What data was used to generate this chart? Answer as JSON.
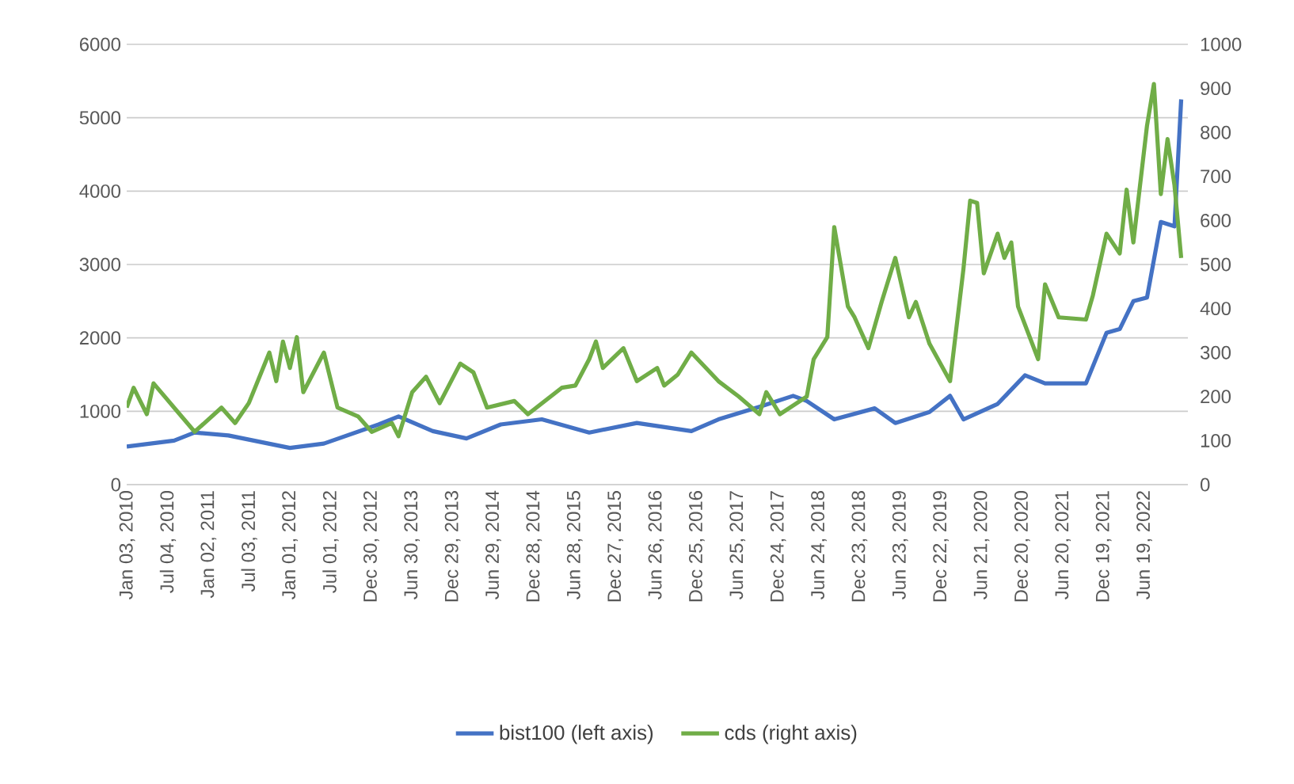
{
  "chart_data": {
    "type": "line",
    "grid": "y",
    "legend": "bottom",
    "xlim": [
      "2010-01-01",
      "2022-12-31"
    ],
    "xticks": [
      {
        "value": "2010-01-03",
        "label": "Jan 03, 2010"
      },
      {
        "value": "2010-07-04",
        "label": "Jul 04, 2010"
      },
      {
        "value": "2011-01-02",
        "label": "Jan 02, 2011"
      },
      {
        "value": "2011-07-03",
        "label": "Jul 03, 2011"
      },
      {
        "value": "2012-01-01",
        "label": "Jan 01, 2012"
      },
      {
        "value": "2012-07-01",
        "label": "Jul 01, 2012"
      },
      {
        "value": "2012-12-30",
        "label": "Dec 30, 2012"
      },
      {
        "value": "2013-06-30",
        "label": "Jun 30, 2013"
      },
      {
        "value": "2013-12-29",
        "label": "Dec 29, 2013"
      },
      {
        "value": "2014-06-29",
        "label": "Jun 29, 2014"
      },
      {
        "value": "2014-12-28",
        "label": "Dec 28, 2014"
      },
      {
        "value": "2015-06-28",
        "label": "Jun 28, 2015"
      },
      {
        "value": "2015-12-27",
        "label": "Dec 27, 2015"
      },
      {
        "value": "2016-06-26",
        "label": "Jun 26, 2016"
      },
      {
        "value": "2016-12-25",
        "label": "Dec 25, 2016"
      },
      {
        "value": "2017-06-25",
        "label": "Jun 25, 2017"
      },
      {
        "value": "2017-12-24",
        "label": "Dec 24, 2017"
      },
      {
        "value": "2018-06-24",
        "label": "Jun 24, 2018"
      },
      {
        "value": "2018-12-23",
        "label": "Dec 23, 2018"
      },
      {
        "value": "2019-06-23",
        "label": "Jun 23, 2019"
      },
      {
        "value": "2019-12-22",
        "label": "Dec 22, 2019"
      },
      {
        "value": "2020-06-21",
        "label": "Jun 21, 2020"
      },
      {
        "value": "2020-12-20",
        "label": "Dec 20, 2020"
      },
      {
        "value": "2021-06-20",
        "label": "Jun 20, 2021"
      },
      {
        "value": "2021-12-19",
        "label": "Dec 19, 2021"
      },
      {
        "value": "2022-06-19",
        "label": "Jun 19, 2022"
      }
    ],
    "ylim": [
      0,
      6000
    ],
    "yticks": [
      0,
      1000,
      2000,
      3000,
      4000,
      5000,
      6000
    ],
    "y2lim": [
      0,
      1000
    ],
    "y2ticks": [
      0,
      100,
      200,
      300,
      400,
      500,
      600,
      700,
      800,
      900,
      1000
    ],
    "series": [
      {
        "name": "bist100 (left axis)",
        "color": "#4472c4",
        "axis": "y",
        "x": [
          "2010-01",
          "2010-08",
          "2010-11",
          "2011-04",
          "2012-01",
          "2012-06",
          "2013-02",
          "2013-05",
          "2013-10",
          "2014-03",
          "2014-08",
          "2015-02",
          "2015-09",
          "2016-04",
          "2016-12",
          "2017-04",
          "2017-10",
          "2018-03",
          "2018-05",
          "2018-09",
          "2019-03",
          "2019-06",
          "2019-11",
          "2020-02",
          "2020-04",
          "2020-09",
          "2021-01",
          "2021-04",
          "2021-10",
          "2022-01",
          "2022-03",
          "2022-05",
          "2022-07",
          "2022-09",
          "2022-11",
          "2022-12"
        ],
        "values": [
          520,
          600,
          710,
          670,
          500,
          560,
          820,
          930,
          730,
          630,
          820,
          890,
          710,
          840,
          730,
          890,
          1060,
          1210,
          1140,
          890,
          1040,
          840,
          990,
          1210,
          890,
          1100,
          1490,
          1380,
          1380,
          2070,
          2120,
          2500,
          2550,
          3580,
          3520,
          5250
        ]
      },
      {
        "name": "cds (right axis)",
        "color": "#70ad47",
        "axis": "y2",
        "x": [
          "2010-01",
          "2010-02",
          "2010-04",
          "2010-05",
          "2010-08",
          "2010-11",
          "2011-03",
          "2011-05",
          "2011-07",
          "2011-10",
          "2011-11",
          "2011-12",
          "2012-01",
          "2012-02",
          "2012-03",
          "2012-06",
          "2012-08",
          "2012-11",
          "2013-01",
          "2013-04",
          "2013-05",
          "2013-07",
          "2013-09",
          "2013-11",
          "2014-02",
          "2014-04",
          "2014-06",
          "2014-10",
          "2014-12",
          "2015-05",
          "2015-07",
          "2015-09",
          "2015-10",
          "2015-11",
          "2016-02",
          "2016-04",
          "2016-07",
          "2016-08",
          "2016-10",
          "2016-12",
          "2017-04",
          "2017-07",
          "2017-10",
          "2017-11",
          "2018-01",
          "2018-05",
          "2018-06",
          "2018-08",
          "2018-09",
          "2018-11",
          "2018-12",
          "2019-02",
          "2019-04",
          "2019-06",
          "2019-08",
          "2019-09",
          "2019-11",
          "2020-02",
          "2020-04",
          "2020-05",
          "2020-06",
          "2020-07",
          "2020-09",
          "2020-10",
          "2020-11",
          "2020-12",
          "2021-03",
          "2021-04",
          "2021-06",
          "2021-10",
          "2021-11",
          "2022-01",
          "2022-03",
          "2022-04",
          "2022-05",
          "2022-07",
          "2022-08",
          "2022-09",
          "2022-10",
          "2022-11",
          "2022-12"
        ],
        "values": [
          175,
          220,
          160,
          230,
          175,
          120,
          175,
          140,
          185,
          300,
          235,
          325,
          265,
          335,
          210,
          300,
          175,
          155,
          120,
          140,
          110,
          210,
          245,
          185,
          275,
          255,
          175,
          190,
          160,
          220,
          225,
          285,
          325,
          265,
          310,
          235,
          265,
          225,
          250,
          300,
          235,
          200,
          160,
          210,
          160,
          200,
          285,
          335,
          585,
          405,
          380,
          310,
          415,
          515,
          380,
          415,
          320,
          235,
          490,
          645,
          640,
          480,
          570,
          515,
          550,
          405,
          285,
          455,
          380,
          375,
          430,
          570,
          525,
          670,
          550,
          815,
          910,
          660,
          785,
          680,
          515
        ]
      }
    ]
  }
}
